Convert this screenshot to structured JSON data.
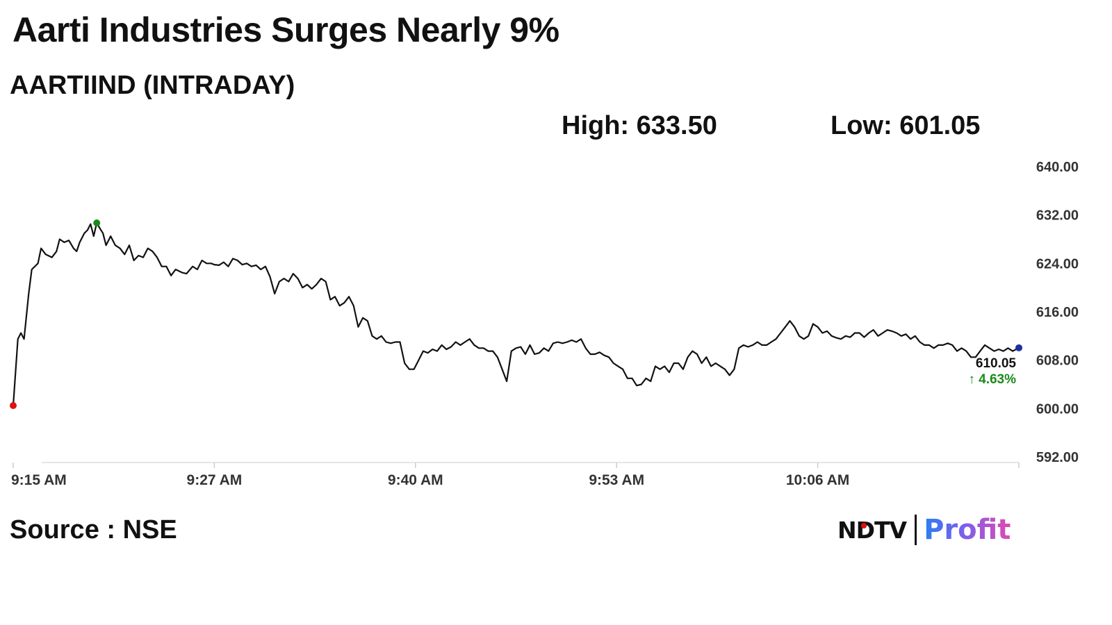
{
  "title": "Aarti Industries Surges Nearly 9%",
  "subtitle": "AARTIIND (INTRADAY)",
  "stats": {
    "high": "High: 633.50",
    "low": "Low: 601.05"
  },
  "source": "Source : NSE",
  "logo": {
    "ndtv": "NDTV",
    "profit": "Profit"
  },
  "colors": {
    "line": "#111111",
    "open_marker": "#e01010",
    "high_marker": "#1a8a1a",
    "last_marker": "#1f2f9f",
    "change": "#1a8a1a"
  },
  "chart_data": {
    "type": "line",
    "title": "",
    "xlabel": "",
    "ylabel": "",
    "ylim": [
      592,
      640
    ],
    "xlim": [
      0,
      65
    ],
    "yticks": [
      "640.00",
      "632.00",
      "624.00",
      "616.00",
      "608.00",
      "600.00",
      "592.00"
    ],
    "ytick_values": [
      640,
      632,
      624,
      616,
      608,
      600,
      592
    ],
    "xticks": [
      {
        "label": "9:15 AM",
        "value": 0
      },
      {
        "label": "9:27 AM",
        "value": 13
      },
      {
        "label": "9:40 AM",
        "value": 26
      },
      {
        "label": "9:53 AM",
        "value": 39
      },
      {
        "label": "10:06 AM",
        "value": 52
      }
    ],
    "last_value_label": "610.05",
    "change_label": "↑ 4.63%",
    "grid": false,
    "series": [
      {
        "values": [
          [
            0,
            600.5
          ],
          [
            0.3,
            611.5
          ],
          [
            0.5,
            612.5
          ],
          [
            0.7,
            611.5
          ],
          [
            1,
            619
          ],
          [
            1.2,
            623
          ],
          [
            1.6,
            624
          ],
          [
            1.8,
            626.5
          ],
          [
            2.1,
            625.5
          ],
          [
            2.5,
            625
          ],
          [
            2.8,
            626
          ],
          [
            3.0,
            628
          ],
          [
            3.3,
            627.5
          ],
          [
            3.6,
            627.8
          ],
          [
            3.9,
            626.5
          ],
          [
            4.1,
            626
          ],
          [
            4.3,
            627.5
          ],
          [
            4.6,
            629
          ],
          [
            4.8,
            629.5
          ],
          [
            5.0,
            630.5
          ],
          [
            5.2,
            628.5
          ],
          [
            5.4,
            630.7
          ],
          [
            5.6,
            629.8
          ],
          [
            5.8,
            629
          ],
          [
            6.0,
            627
          ],
          [
            6.3,
            628.5
          ],
          [
            6.6,
            627
          ],
          [
            6.9,
            626.5
          ],
          [
            7.2,
            625.5
          ],
          [
            7.5,
            627
          ],
          [
            7.8,
            624.5
          ],
          [
            8.1,
            625.3
          ],
          [
            8.4,
            625
          ],
          [
            8.7,
            626.5
          ],
          [
            9.0,
            626
          ],
          [
            9.3,
            625
          ],
          [
            9.6,
            623.5
          ],
          [
            9.9,
            623.5
          ],
          [
            10.2,
            622
          ],
          [
            10.5,
            623
          ],
          [
            10.9,
            622.5
          ],
          [
            11.2,
            622.3
          ],
          [
            11.6,
            623.5
          ],
          [
            11.9,
            623
          ],
          [
            12.2,
            624.5
          ],
          [
            12.5,
            624
          ],
          [
            12.8,
            624
          ],
          [
            13.0,
            623.8
          ],
          [
            13.3,
            623.7
          ],
          [
            13.6,
            624.2
          ],
          [
            13.9,
            623.5
          ],
          [
            14.2,
            624.8
          ],
          [
            14.5,
            624.5
          ],
          [
            14.8,
            623.8
          ],
          [
            15.1,
            624
          ],
          [
            15.4,
            623.5
          ],
          [
            15.7,
            623.7
          ],
          [
            16.0,
            623
          ],
          [
            16.3,
            623.5
          ],
          [
            16.6,
            621.8
          ],
          [
            16.9,
            619
          ],
          [
            17.2,
            621
          ],
          [
            17.5,
            621.5
          ],
          [
            17.8,
            621
          ],
          [
            18.1,
            622.3
          ],
          [
            18.4,
            621.5
          ],
          [
            18.7,
            620
          ],
          [
            19.0,
            620.5
          ],
          [
            19.3,
            619.8
          ],
          [
            19.6,
            620.5
          ],
          [
            19.9,
            621.5
          ],
          [
            20.2,
            621
          ],
          [
            20.5,
            618
          ],
          [
            20.8,
            618.5
          ],
          [
            21.1,
            617
          ],
          [
            21.4,
            617.5
          ],
          [
            21.7,
            618.5
          ],
          [
            22.0,
            617
          ],
          [
            22.3,
            613.5
          ],
          [
            22.6,
            615
          ],
          [
            22.9,
            614.5
          ],
          [
            23.2,
            612
          ],
          [
            23.5,
            611.5
          ],
          [
            23.8,
            612
          ],
          [
            24.1,
            611
          ],
          [
            24.4,
            610.8
          ],
          [
            24.7,
            611
          ],
          [
            25.0,
            611
          ],
          [
            25.3,
            607.5
          ],
          [
            25.6,
            606.5
          ],
          [
            25.9,
            606.5
          ],
          [
            26.2,
            608
          ],
          [
            26.5,
            609.5
          ],
          [
            26.8,
            609.2
          ],
          [
            27.1,
            609.8
          ],
          [
            27.4,
            609.5
          ],
          [
            27.7,
            610.5
          ],
          [
            28.0,
            609.8
          ],
          [
            28.3,
            610.2
          ],
          [
            28.6,
            611
          ],
          [
            28.9,
            610.5
          ],
          [
            29.2,
            611
          ],
          [
            29.5,
            611.5
          ],
          [
            29.8,
            610.5
          ],
          [
            30.1,
            610
          ],
          [
            30.4,
            610
          ],
          [
            30.7,
            609.5
          ],
          [
            31.0,
            609.5
          ],
          [
            31.3,
            608.5
          ],
          [
            31.6,
            606.5
          ],
          [
            31.9,
            604.5
          ],
          [
            32.2,
            609.5
          ],
          [
            32.5,
            610
          ],
          [
            32.8,
            610.2
          ],
          [
            33.1,
            609
          ],
          [
            33.4,
            610.5
          ],
          [
            33.7,
            609
          ],
          [
            34.0,
            609.2
          ],
          [
            34.3,
            610
          ],
          [
            34.6,
            609.5
          ],
          [
            34.9,
            610.8
          ],
          [
            35.2,
            611
          ],
          [
            35.5,
            610.8
          ],
          [
            35.8,
            611
          ],
          [
            36.1,
            611.3
          ],
          [
            36.4,
            611
          ],
          [
            36.7,
            611.5
          ],
          [
            37.0,
            610
          ],
          [
            37.3,
            609
          ],
          [
            37.6,
            609
          ],
          [
            37.9,
            609.3
          ],
          [
            38.2,
            608.8
          ],
          [
            38.5,
            608.5
          ],
          [
            38.8,
            607.5
          ],
          [
            39.1,
            607
          ],
          [
            39.4,
            606.5
          ],
          [
            39.7,
            605
          ],
          [
            40.0,
            605
          ],
          [
            40.3,
            603.8
          ],
          [
            40.6,
            604
          ],
          [
            40.9,
            605
          ],
          [
            41.2,
            604.5
          ],
          [
            41.5,
            607
          ],
          [
            41.8,
            606.5
          ],
          [
            42.1,
            607
          ],
          [
            42.4,
            606
          ],
          [
            42.7,
            607.5
          ],
          [
            43.0,
            607.5
          ],
          [
            43.3,
            606.5
          ],
          [
            43.6,
            608.5
          ],
          [
            43.9,
            609.5
          ],
          [
            44.2,
            609
          ],
          [
            44.5,
            607.5
          ],
          [
            44.8,
            608.5
          ],
          [
            45.1,
            607
          ],
          [
            45.4,
            607.5
          ],
          [
            45.7,
            607
          ],
          [
            46.0,
            606.5
          ],
          [
            46.3,
            605.5
          ],
          [
            46.6,
            606.5
          ],
          [
            46.9,
            610
          ],
          [
            47.2,
            610.5
          ],
          [
            47.5,
            610.2
          ],
          [
            47.8,
            610.5
          ],
          [
            48.1,
            611
          ],
          [
            48.4,
            610.5
          ],
          [
            48.7,
            610.5
          ],
          [
            49.0,
            611
          ],
          [
            49.3,
            611.5
          ],
          [
            49.6,
            612.5
          ],
          [
            49.9,
            613.5
          ],
          [
            50.2,
            614.5
          ],
          [
            50.5,
            613.5
          ],
          [
            50.8,
            612
          ],
          [
            51.1,
            611.5
          ],
          [
            51.4,
            612
          ],
          [
            51.7,
            614
          ],
          [
            52.0,
            613.5
          ],
          [
            52.3,
            612.5
          ],
          [
            52.6,
            612.8
          ],
          [
            52.9,
            612
          ],
          [
            53.2,
            611.7
          ],
          [
            53.5,
            611.5
          ],
          [
            53.8,
            612
          ],
          [
            54.1,
            611.8
          ],
          [
            54.4,
            612.5
          ],
          [
            54.7,
            612.5
          ],
          [
            55.0,
            611.8
          ],
          [
            55.3,
            612.5
          ],
          [
            55.6,
            613
          ],
          [
            55.9,
            612
          ],
          [
            56.2,
            612.5
          ],
          [
            56.5,
            613
          ],
          [
            56.8,
            612.8
          ],
          [
            57.1,
            612.5
          ],
          [
            57.4,
            612
          ],
          [
            57.7,
            612.3
          ],
          [
            58.0,
            611.5
          ],
          [
            58.3,
            612
          ],
          [
            58.6,
            611
          ],
          [
            58.9,
            610.5
          ],
          [
            59.2,
            610.5
          ],
          [
            59.5,
            610
          ],
          [
            59.8,
            610.5
          ],
          [
            60.1,
            610.5
          ],
          [
            60.4,
            610.8
          ],
          [
            60.7,
            610.5
          ],
          [
            61.0,
            609.5
          ],
          [
            61.3,
            610
          ],
          [
            61.6,
            609.5
          ],
          [
            61.9,
            608.5
          ],
          [
            62.2,
            608.5
          ],
          [
            62.5,
            609.5
          ],
          [
            62.8,
            610.5
          ],
          [
            63.1,
            610
          ],
          [
            63.4,
            609.5
          ],
          [
            63.7,
            609.8
          ],
          [
            64.0,
            609.5
          ],
          [
            64.3,
            610
          ],
          [
            64.6,
            609.5
          ],
          [
            65.0,
            610.05
          ]
        ]
      }
    ],
    "markers": [
      {
        "type": "open",
        "x": 0,
        "y": 600.5
      },
      {
        "type": "high",
        "x": 5.4,
        "y": 630.7
      },
      {
        "type": "last",
        "x": 65,
        "y": 610.05
      }
    ]
  }
}
